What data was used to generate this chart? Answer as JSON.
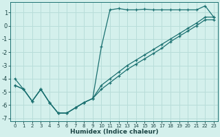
{
  "xlabel": "Humidex (Indice chaleur)",
  "bg_color": "#d4f0ec",
  "grid_color": "#b8ddd9",
  "line_color": "#1a7070",
  "xlim": [
    -0.5,
    23.5
  ],
  "ylim": [
    -7.2,
    1.8
  ],
  "yticks": [
    1,
    0,
    -1,
    -2,
    -3,
    -4,
    -5,
    -6,
    -7
  ],
  "xticks": [
    0,
    1,
    2,
    3,
    4,
    5,
    6,
    7,
    8,
    9,
    10,
    11,
    12,
    13,
    14,
    15,
    16,
    17,
    18,
    19,
    20,
    21,
    22,
    23
  ],
  "line1_x": [
    0,
    1,
    2,
    3,
    4,
    5,
    6,
    7,
    8,
    9,
    10,
    11,
    12,
    13,
    14,
    15,
    16,
    17,
    18,
    19,
    20,
    21,
    22,
    23
  ],
  "line1_y": [
    -4.0,
    -4.8,
    -5.7,
    -4.8,
    -5.8,
    -6.6,
    -6.6,
    -6.2,
    -5.8,
    -5.5,
    -1.6,
    1.2,
    1.3,
    1.2,
    1.2,
    1.25,
    1.2,
    1.2,
    1.2,
    1.2,
    1.2,
    1.2,
    1.5,
    0.65
  ],
  "line2_x": [
    0,
    1,
    2,
    3,
    4,
    5,
    6,
    7,
    8,
    9,
    10,
    11,
    12,
    13,
    14,
    15,
    16,
    17,
    18,
    19,
    20,
    21,
    22,
    23
  ],
  "line2_y": [
    -4.5,
    -4.8,
    -5.7,
    -4.8,
    -5.8,
    -6.6,
    -6.6,
    -6.2,
    -5.8,
    -5.5,
    -4.5,
    -4.0,
    -3.5,
    -3.0,
    -2.6,
    -2.2,
    -1.8,
    -1.4,
    -1.0,
    -0.6,
    -0.2,
    0.2,
    0.65,
    0.65
  ],
  "line3_x": [
    0,
    1,
    2,
    3,
    4,
    5,
    6,
    7,
    8,
    9,
    10,
    11,
    12,
    13,
    14,
    15,
    16,
    17,
    18,
    19,
    20,
    21,
    22,
    23
  ],
  "line3_y": [
    -4.5,
    -4.8,
    -5.7,
    -4.8,
    -5.8,
    -6.6,
    -6.6,
    -6.2,
    -5.8,
    -5.5,
    -4.8,
    -4.3,
    -3.8,
    -3.3,
    -2.9,
    -2.5,
    -2.1,
    -1.7,
    -1.2,
    -0.8,
    -0.4,
    0.0,
    0.45,
    0.45
  ]
}
